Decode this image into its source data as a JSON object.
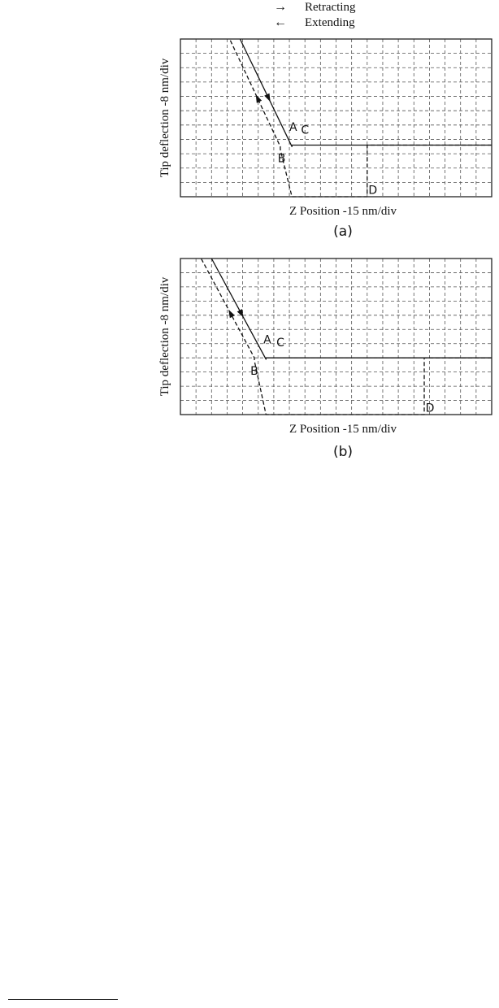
{
  "legend": {
    "retracting": "Retracting",
    "extending": "Extending",
    "retracting_arrow": "→",
    "extending_arrow": "←"
  },
  "chart_data": [
    {
      "type": "line",
      "panel_label": "(a)",
      "xlabel": "Z Position -15 nm/div",
      "ylabel": "Tip deflection -8 nm/div",
      "grid": true,
      "xlim": [
        0,
        12
      ],
      "ylim": [
        0,
        11
      ],
      "series": [
        {
          "name": "Retracting",
          "x": [
            2.3,
            4.3,
            4.3,
            12
          ],
          "y": [
            11,
            3.5,
            3.6,
            3.6
          ],
          "style": "solid"
        },
        {
          "name": "Extending",
          "x": [
            12,
            7.2,
            7.2,
            4.3,
            3.85,
            3.85,
            1.9
          ],
          "y": [
            3.6,
            3.6,
            0,
            0,
            3.3,
            3.5,
            11
          ],
          "style": "dashed"
        }
      ],
      "annotations": [
        {
          "text": "A",
          "x": 4.2,
          "y": 4.6
        },
        {
          "text": "B",
          "x": 3.75,
          "y": 2.4
        },
        {
          "text": "C",
          "x": 4.65,
          "y": 4.4
        },
        {
          "text": "D",
          "x": 7.25,
          "y": 0.2
        }
      ]
    },
    {
      "type": "line",
      "panel_label": "(b)",
      "xlabel": "Z Position -15 nm/div",
      "ylabel": "Tip deflection -8 nm/div",
      "grid": true,
      "xlim": [
        0,
        12
      ],
      "ylim": [
        0,
        11
      ],
      "series": [
        {
          "name": "Retracting",
          "x": [
            1.2,
            3.3,
            3.3,
            12
          ],
          "y": [
            11,
            3.9,
            4.0,
            4.0
          ],
          "style": "solid"
        },
        {
          "name": "Extending",
          "x": [
            12,
            9.4,
            9.4,
            3.3,
            2.85,
            2.85,
            0.8
          ],
          "y": [
            4.0,
            4.0,
            0,
            0,
            3.8,
            4.0,
            11
          ],
          "style": "dashed"
        }
      ],
      "annotations": [
        {
          "text": "A",
          "x": 3.2,
          "y": 5.0
        },
        {
          "text": "B",
          "x": 2.7,
          "y": 2.8
        },
        {
          "text": "C",
          "x": 3.7,
          "y": 4.8
        },
        {
          "text": "D",
          "x": 9.45,
          "y": 0.2
        }
      ]
    }
  ]
}
